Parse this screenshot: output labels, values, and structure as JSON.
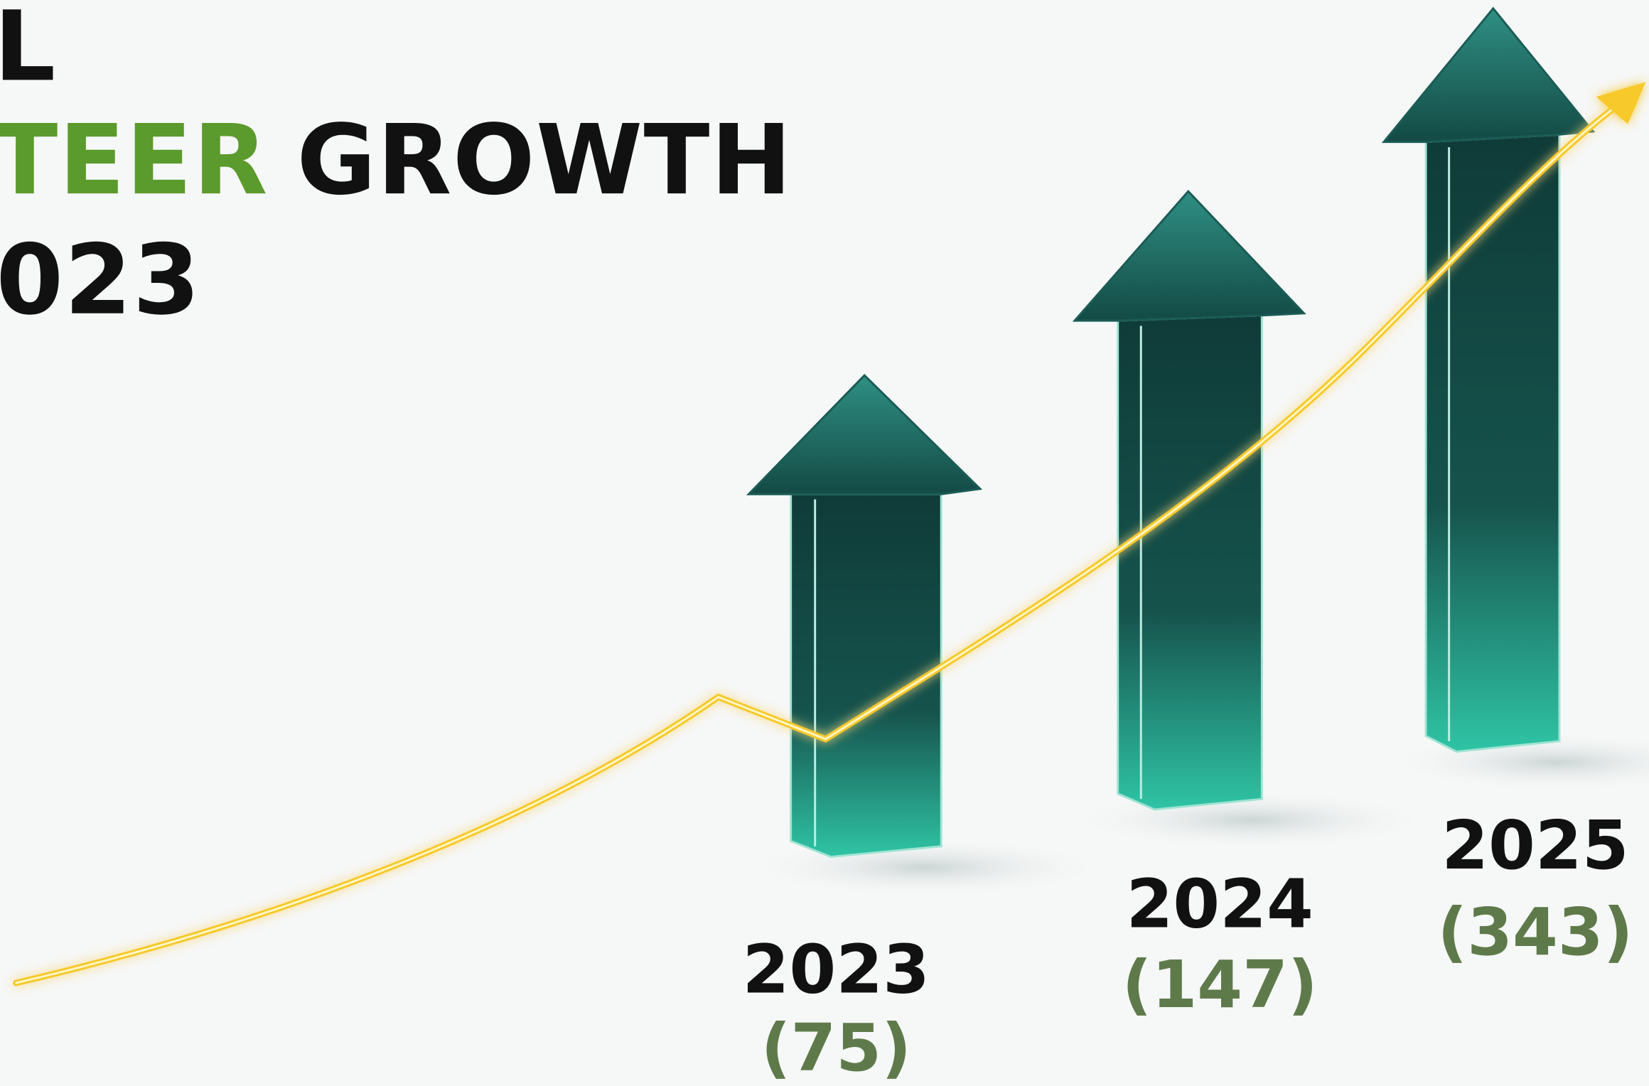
{
  "header": {
    "line1": "L",
    "line2_highlight": "TEER",
    "line2_rest": "GROWTH",
    "line3": "023"
  },
  "items": [
    {
      "year": "2023",
      "count": "(75)"
    },
    {
      "year": "2024",
      "count": "(147)"
    },
    {
      "year": "2025",
      "count": "(343)"
    }
  ]
}
